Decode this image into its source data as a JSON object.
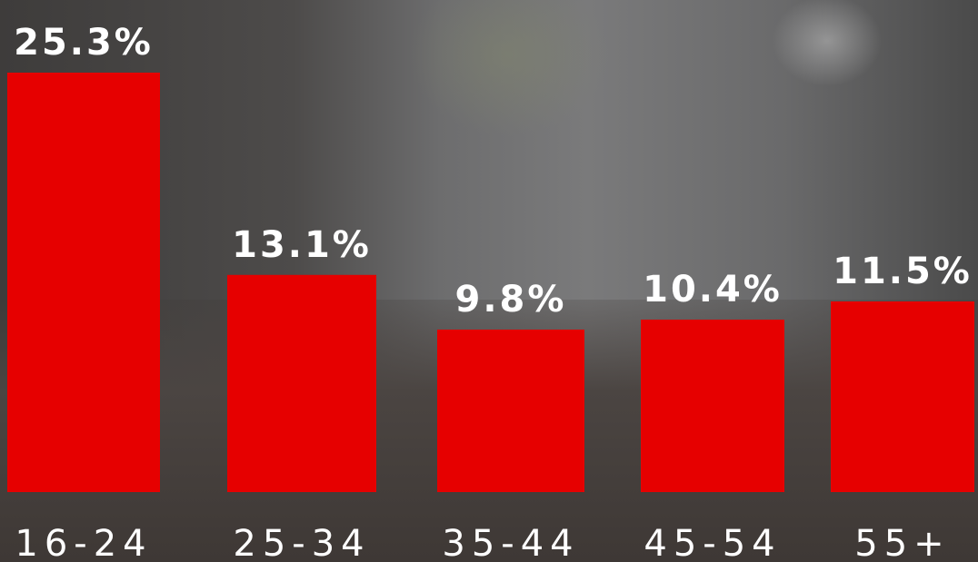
{
  "chart_data": {
    "type": "bar",
    "categories": [
      "16-24",
      "25-34",
      "35-44",
      "45-54",
      "55+"
    ],
    "values": [
      25.3,
      13.1,
      9.8,
      10.4,
      11.5
    ],
    "value_labels": [
      "25.3%",
      "13.1%",
      "9.8%",
      "10.4%",
      "11.5%"
    ],
    "color": "#e60000"
  }
}
